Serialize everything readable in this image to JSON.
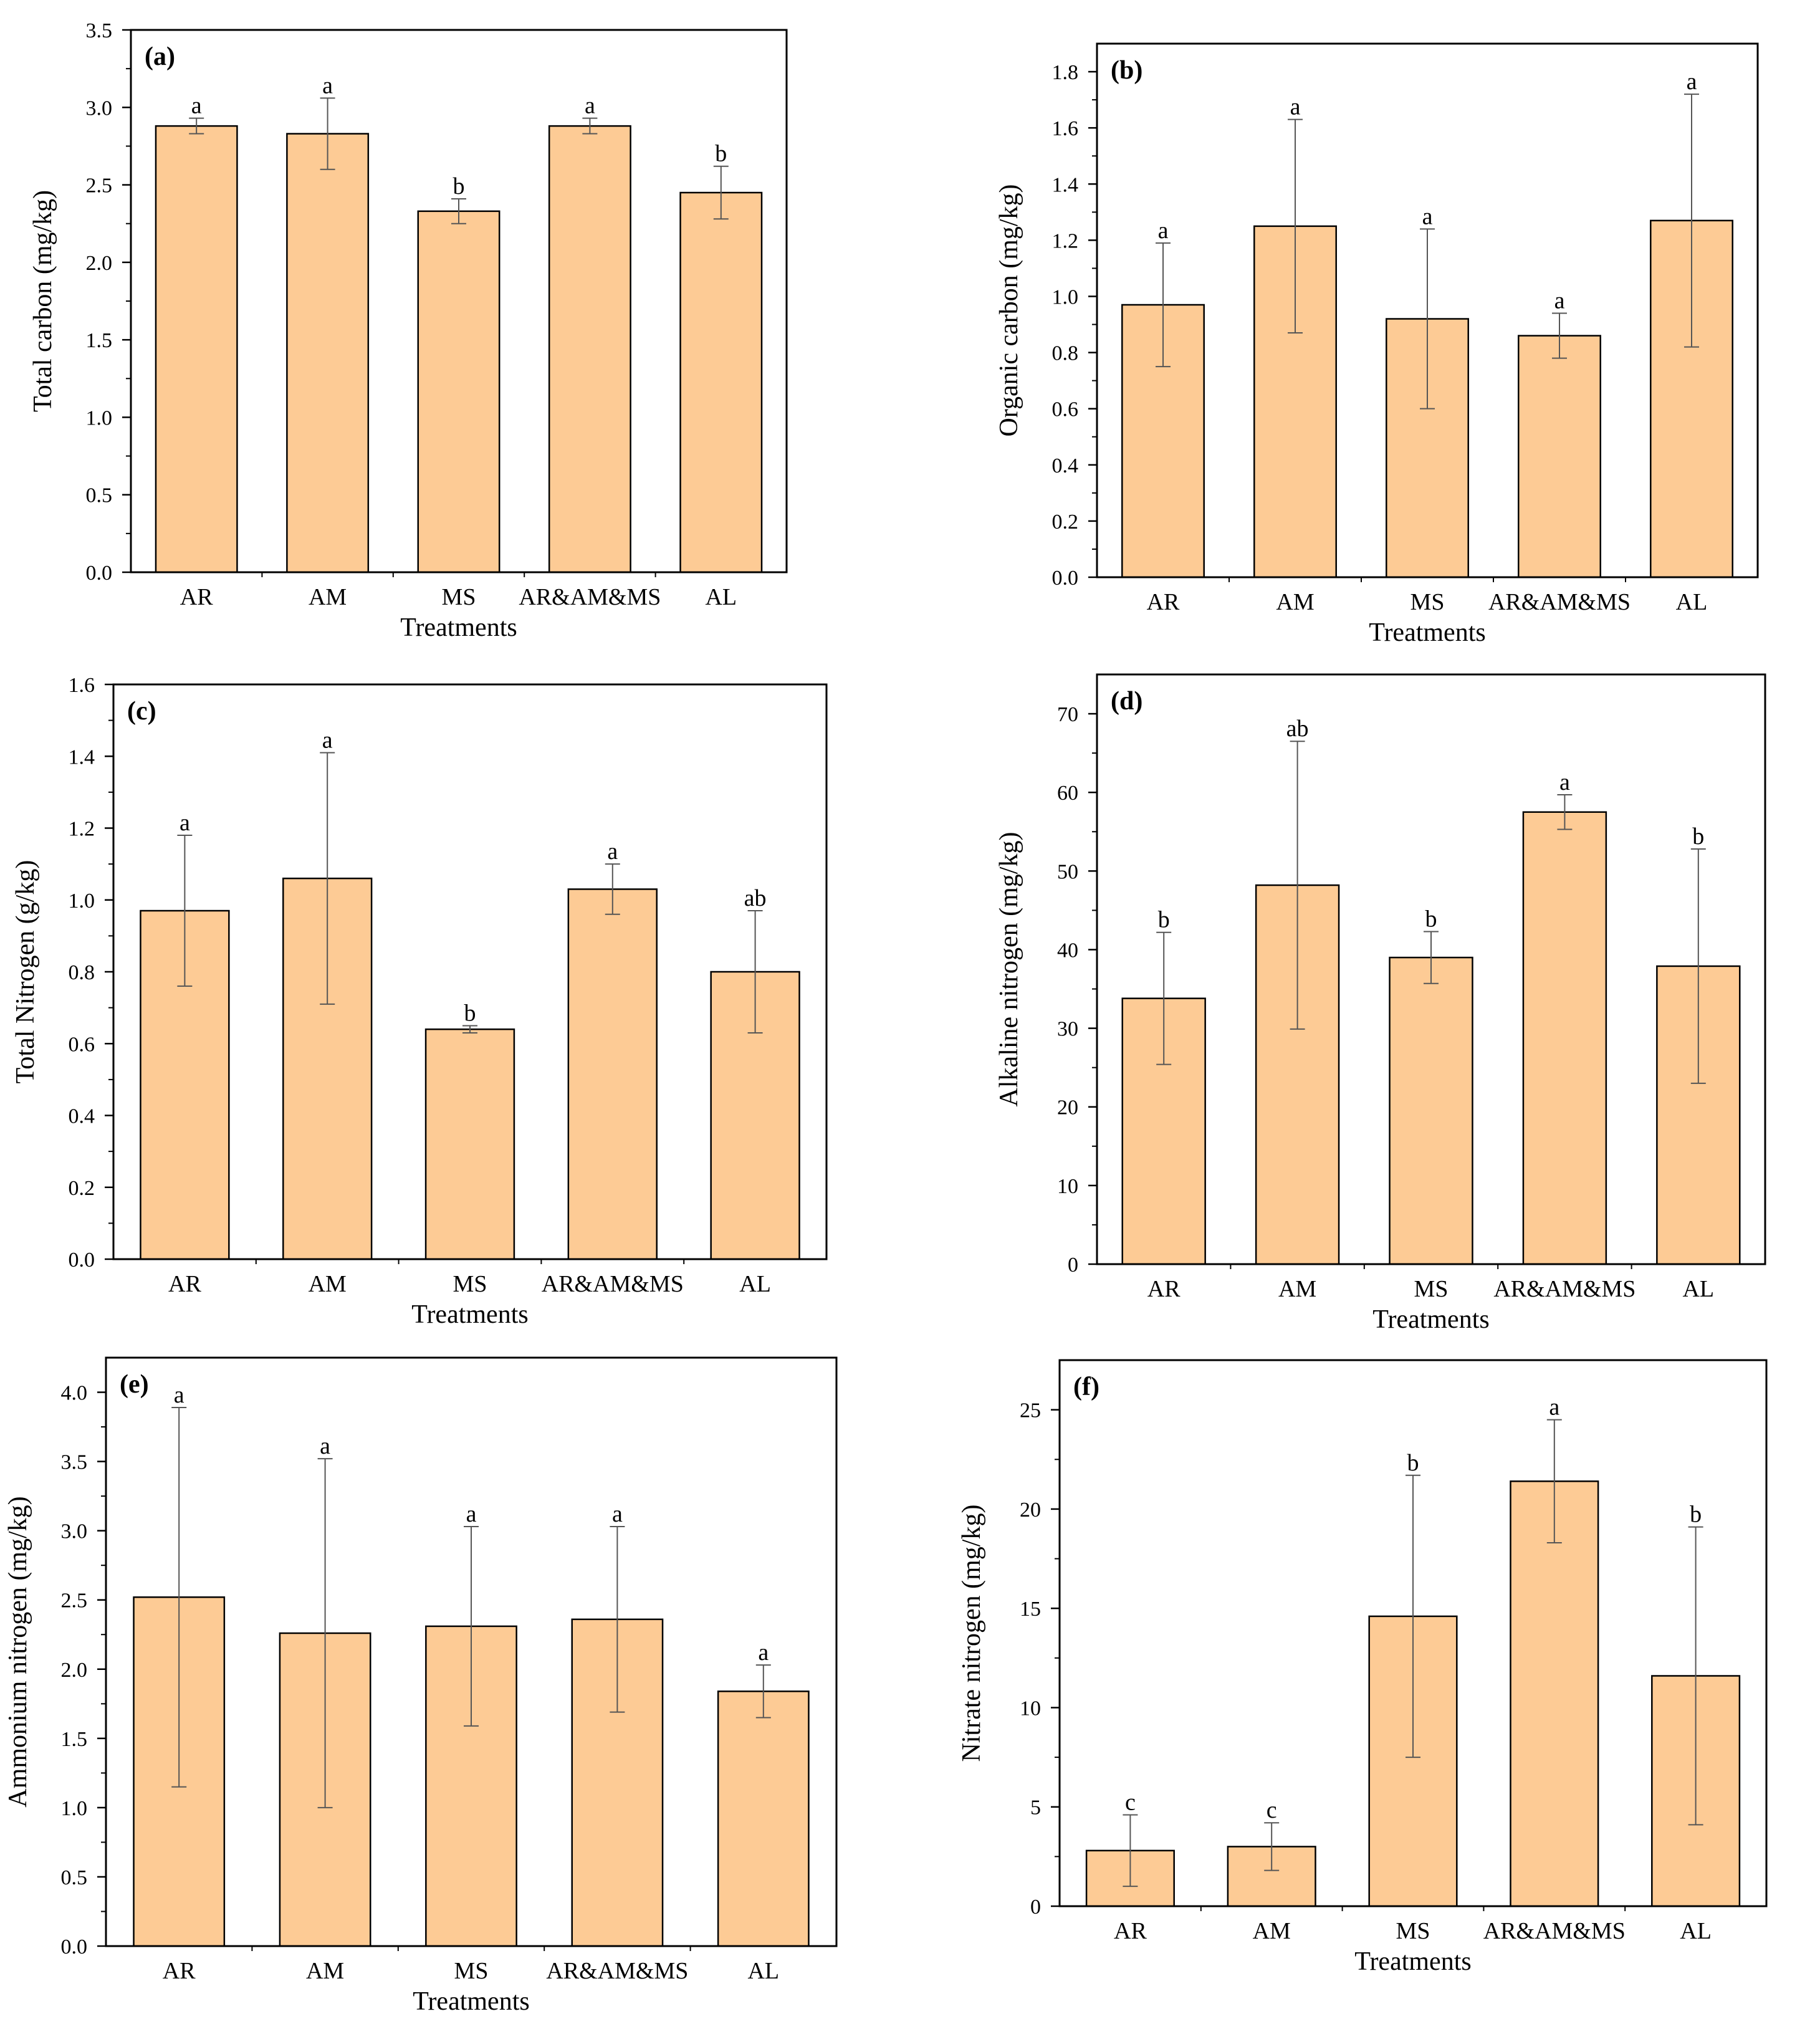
{
  "chart_data": [
    {
      "panel": "(a)",
      "type": "bar",
      "categories": [
        "AR",
        "AM",
        "MS",
        "AR&AM&MS",
        "AL"
      ],
      "values": [
        2.88,
        2.83,
        2.33,
        2.88,
        2.45
      ],
      "errors": [
        0.05,
        0.23,
        0.08,
        0.05,
        0.17
      ],
      "letters": [
        "a",
        "a",
        "b",
        "a",
        "b"
      ],
      "ylabel": "Total carbon (mg/kg)",
      "xlabel": "Treatments",
      "ylim": [
        0,
        3.5
      ],
      "yticks": [
        0.0,
        0.5,
        1.0,
        1.5,
        2.0,
        2.5,
        3.0,
        3.5
      ],
      "tick_decimals": 1,
      "grid": false,
      "bar_color": "#FDCB95"
    },
    {
      "panel": "(b)",
      "type": "bar",
      "categories": [
        "AR",
        "AM",
        "MS",
        "AR&AM&MS",
        "AL"
      ],
      "values": [
        0.97,
        1.25,
        0.92,
        0.86,
        1.27
      ],
      "errors": [
        0.22,
        0.38,
        0.32,
        0.08,
        0.45
      ],
      "letters": [
        "a",
        "a",
        "a",
        "a",
        "a"
      ],
      "ylabel": "Organic carbon (mg/kg)",
      "xlabel": "Treatments",
      "ylim": [
        0,
        1.9
      ],
      "yticks": [
        0.0,
        0.2,
        0.4,
        0.6,
        0.8,
        1.0,
        1.2,
        1.4,
        1.6,
        1.8
      ],
      "tick_decimals": 1,
      "grid": false,
      "bar_color": "#FDCB95"
    },
    {
      "panel": "(c)",
      "type": "bar",
      "categories": [
        "AR",
        "AM",
        "MS",
        "AR&AM&MS",
        "AL"
      ],
      "values": [
        0.97,
        1.06,
        0.64,
        1.03,
        0.8
      ],
      "errors": [
        0.21,
        0.35,
        0.01,
        0.07,
        0.17
      ],
      "letters": [
        "a",
        "a",
        "b",
        "a",
        "ab"
      ],
      "ylabel": "Total Nitrogen (g/kg)",
      "xlabel": "Treatments",
      "ylim": [
        0,
        1.6
      ],
      "yticks": [
        0.0,
        0.2,
        0.4,
        0.6,
        0.8,
        1.0,
        1.2,
        1.4,
        1.6
      ],
      "tick_decimals": 1,
      "grid": false,
      "bar_color": "#FDCB95"
    },
    {
      "panel": "(d)",
      "type": "bar",
      "categories": [
        "AR",
        "AM",
        "MS",
        "AR&AM&MS",
        "AL"
      ],
      "values": [
        33.8,
        48.2,
        39.0,
        57.5,
        37.9
      ],
      "errors": [
        8.4,
        18.3,
        3.3,
        2.2,
        14.9
      ],
      "letters": [
        "b",
        "ab",
        "b",
        "a",
        "b"
      ],
      "ylabel": "Alkaline nitrogen (mg/kg)",
      "xlabel": "Treatments",
      "ylim": [
        0,
        75
      ],
      "yticks": [
        0,
        10,
        20,
        30,
        40,
        50,
        60,
        70
      ],
      "tick_decimals": 0,
      "grid": false,
      "bar_color": "#FDCB95"
    },
    {
      "panel": "(e)",
      "type": "bar",
      "categories": [
        "AR",
        "AM",
        "MS",
        "AR&AM&MS",
        "AL"
      ],
      "values": [
        2.52,
        2.26,
        2.31,
        2.36,
        1.84
      ],
      "errors": [
        1.37,
        1.26,
        0.72,
        0.67,
        0.19
      ],
      "letters": [
        "a",
        "a",
        "a",
        "a",
        "a"
      ],
      "ylabel": "Ammonium nitrogen (mg/kg)",
      "xlabel": "Treatments",
      "ylim": [
        0,
        4.25
      ],
      "yticks": [
        0.0,
        0.5,
        1.0,
        1.5,
        2.0,
        2.5,
        3.0,
        3.5,
        4.0
      ],
      "tick_decimals": 1,
      "grid": false,
      "bar_color": "#FDCB95"
    },
    {
      "panel": "(f)",
      "type": "bar",
      "categories": [
        "AR",
        "AM",
        "MS",
        "AR&AM&MS",
        "AL"
      ],
      "values": [
        2.8,
        3.0,
        14.6,
        21.4,
        11.6
      ],
      "errors": [
        1.8,
        1.2,
        7.1,
        3.1,
        7.5
      ],
      "letters": [
        "c",
        "c",
        "b",
        "a",
        "b"
      ],
      "ylabel": "Nitrate nitrogen (mg/kg)",
      "xlabel": "Treatments",
      "ylim": [
        0,
        27.5
      ],
      "yticks": [
        0,
        5,
        10,
        15,
        20,
        25
      ],
      "tick_decimals": 0,
      "grid": false,
      "bar_color": "#FDCB95"
    }
  ]
}
